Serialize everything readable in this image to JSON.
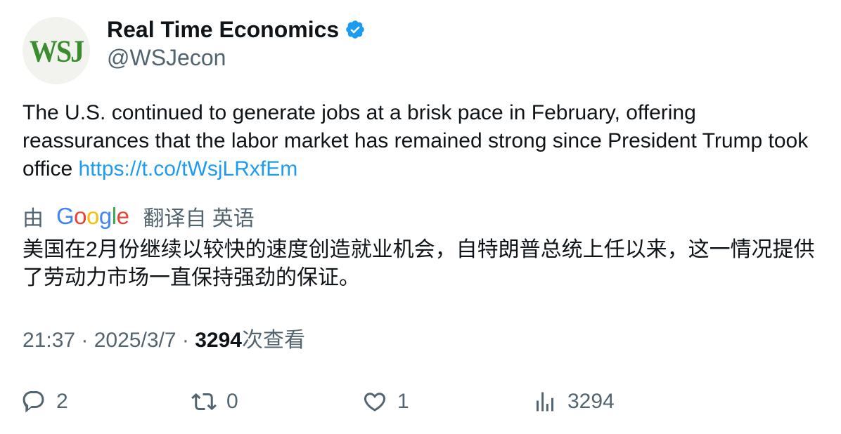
{
  "author": {
    "avatar_text": "WSJ",
    "display_name": "Real Time Economics",
    "handle": "@WSJecon"
  },
  "tweet": {
    "text": "The U.S. continued to generate jobs at a brisk pace in February, offering reassurances that the labor market has remained strong since President Trump took office ",
    "link": "https://t.co/tWsjLRxfEm"
  },
  "translation": {
    "prefix": "由",
    "provider_letters": [
      "G",
      "o",
      "o",
      "g",
      "l",
      "e"
    ],
    "provider_colors": [
      "#4285F4",
      "#EA4335",
      "#FBBC05",
      "#4285F4",
      "#34A853",
      "#EA4335"
    ],
    "suffix": "翻译自 英语",
    "text": "美国在2月份继续以较快的速度创造就业机会，自特朗普总统上任以来，这一情况提供了劳动力市场一直保持强劲的保证。"
  },
  "meta": {
    "time": "21:37",
    "sep1": " · ",
    "date": "2025/3/7",
    "sep2": " · ",
    "views": "3294",
    "views_label": "次查看"
  },
  "actions": {
    "replies": "2",
    "retweets": "0",
    "likes": "1",
    "views": "3294"
  },
  "colors": {
    "link": "#1d9bf0",
    "verified": "#1d9bf0",
    "secondary_text": "#536471",
    "primary_text": "#0f1419",
    "avatar_logo": "#3a8c2e"
  }
}
